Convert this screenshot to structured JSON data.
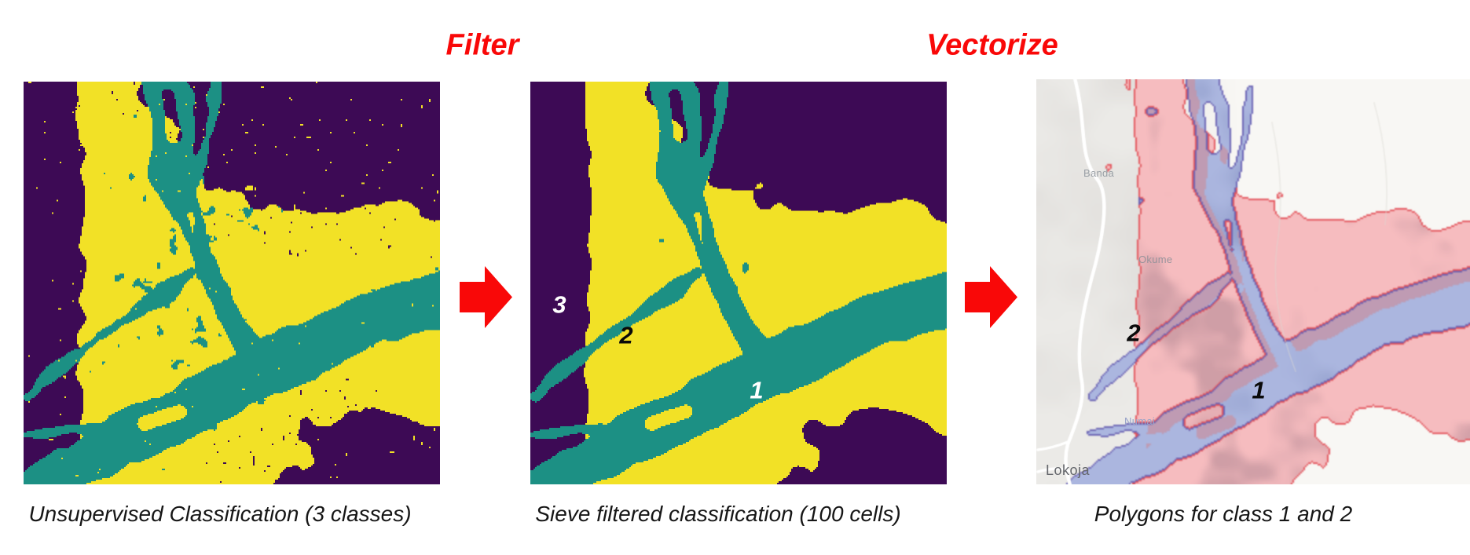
{
  "titles": {
    "filter": "Filter",
    "vectorize": "Vectorize",
    "color": "#f90808"
  },
  "panels": {
    "raw": {
      "caption": "Unsupervised Classification (3 classes)"
    },
    "sieved": {
      "caption": "Sieve filtered classification (100 cells)",
      "overlays": [
        {
          "text": "3",
          "color": "#ffffff"
        },
        {
          "text": "2",
          "color": "#0a0a0a"
        },
        {
          "text": "1",
          "color": "#ffffff"
        }
      ]
    },
    "vector": {
      "caption": "Polygons for class 1 and 2",
      "overlays": [
        {
          "text": "2",
          "color": "#0a0a0a"
        },
        {
          "text": "1",
          "color": "#0a0a0a"
        }
      ],
      "map_labels": [
        {
          "text": "Banda",
          "color": "#9aa0a6"
        },
        {
          "text": "Okume",
          "color": "#98939b"
        },
        {
          "text": "Numai",
          "color": "#96a2c8"
        },
        {
          "text": "Lokoja",
          "color": "#64666b"
        }
      ]
    }
  },
  "class_colors": {
    "teal": "#1c9084",
    "yellow": "#f2e126",
    "purple": "#3d0a55"
  },
  "map_colors": {
    "bg": "#ebeae7",
    "bg_dark": "#e2e0dd",
    "bg_light": "#f8f7f4",
    "pink": "#f6bcbf",
    "pink_dark": "#c0929c",
    "pink_outline": "#e4555c",
    "blue": "#abb6df",
    "blue_dark": "#8f9cc9",
    "blue_outline": "#6a62b4",
    "mauve": "#c594a6",
    "road": "#ffffff",
    "minor_road": "#dcd9d4"
  }
}
